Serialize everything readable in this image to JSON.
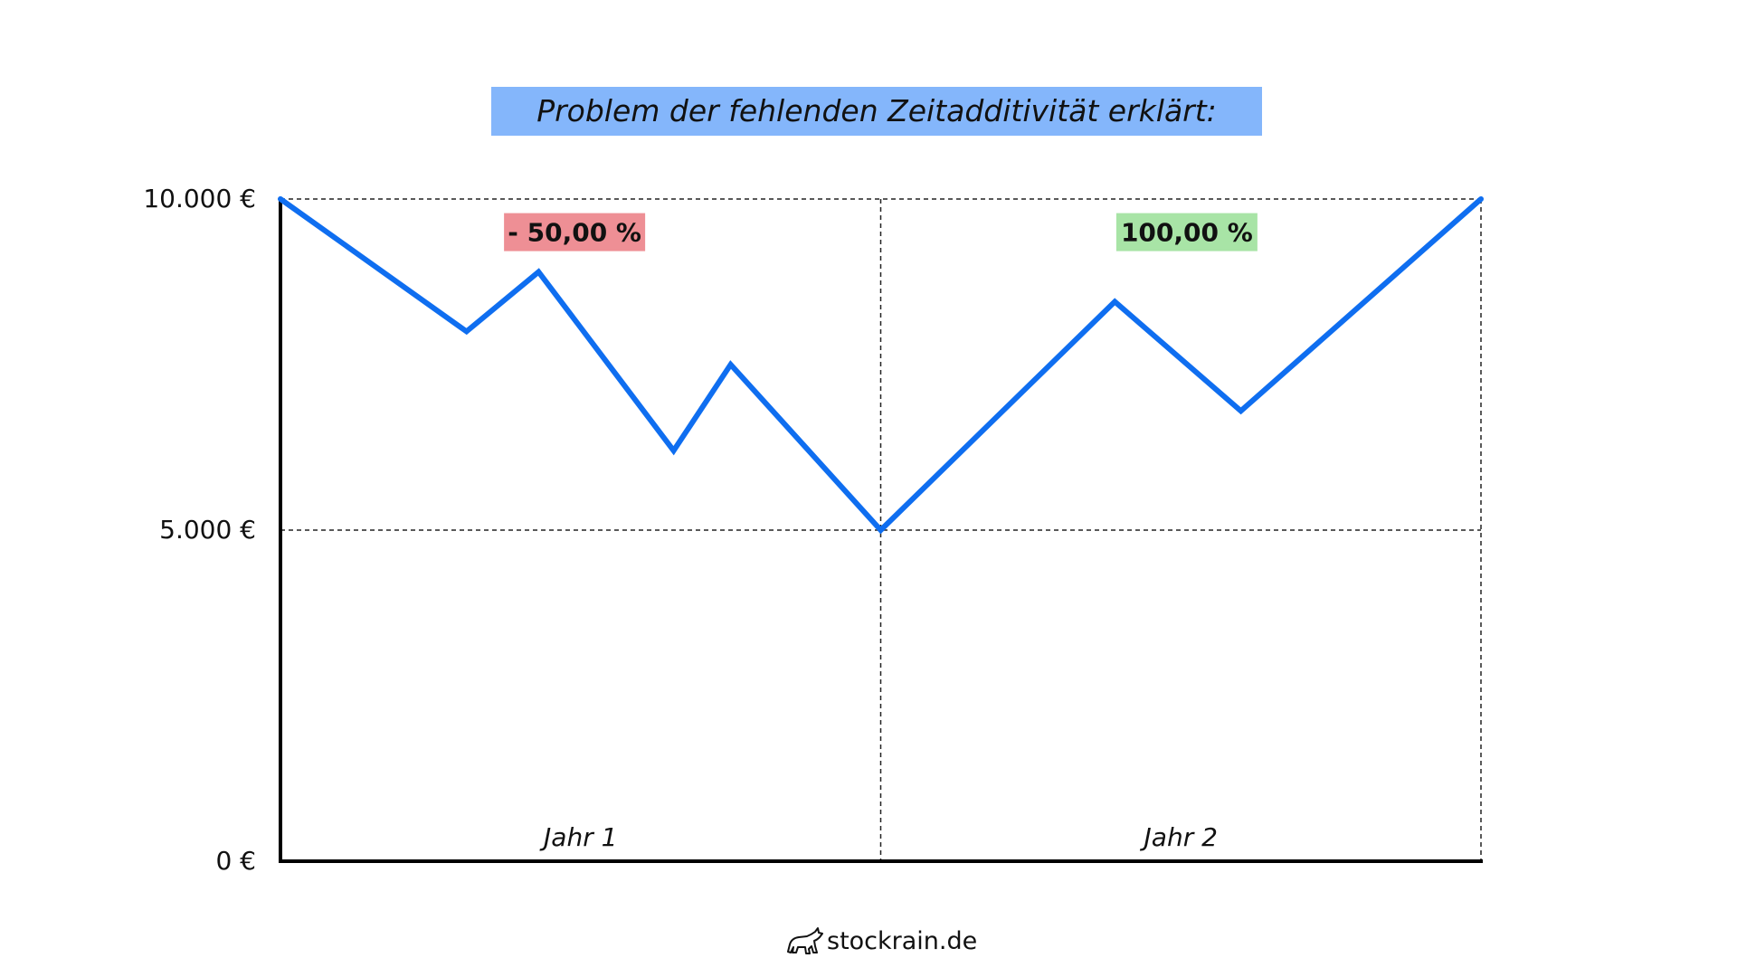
{
  "chart_data": {
    "type": "line",
    "title": "Problem der fehlenden Zeitadditivität erklärt:",
    "xlabel": "",
    "ylabel": "",
    "x_range": [
      0,
      2
    ],
    "ylim": [
      0,
      10000
    ],
    "y_ticks": [
      {
        "value": 0,
        "label": "0 €"
      },
      {
        "value": 5000,
        "label": "5.000 €"
      },
      {
        "value": 10000,
        "label": "10.000 €"
      }
    ],
    "x_sections": [
      {
        "label": "Jahr 1",
        "from": 0,
        "to": 1
      },
      {
        "label": "Jahr 2",
        "from": 1,
        "to": 2
      }
    ],
    "grid": true,
    "series": [
      {
        "color": "#0f6ef0",
        "points": [
          {
            "x": 0,
            "y": 10000
          },
          {
            "x": 0.31,
            "y": 8000
          },
          {
            "x": 0.43,
            "y": 8900
          },
          {
            "x": 0.655,
            "y": 6200
          },
          {
            "x": 0.75,
            "y": 7500
          },
          {
            "x": 1.0,
            "y": 5000
          },
          {
            "x": 1.39,
            "y": 8450
          },
          {
            "x": 1.6,
            "y": 6800
          },
          {
            "x": 2.0,
            "y": 10000
          }
        ]
      }
    ],
    "annotations": [
      {
        "text": "- 50,00 %",
        "x": 0.49,
        "y": 9500,
        "background": "#ee8f95"
      },
      {
        "text": "100,00 %",
        "x": 1.51,
        "y": 9500,
        "background": "#a8e4a6"
      }
    ]
  },
  "footer": {
    "logo_text": "stockrain.de"
  }
}
